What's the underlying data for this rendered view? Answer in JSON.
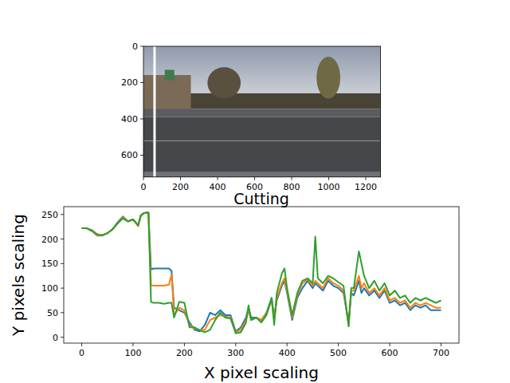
{
  "chart_data": [
    {
      "type": "image",
      "xlim": [
        0,
        1280
      ],
      "ylim": [
        720,
        0
      ],
      "xticks": [
        0,
        200,
        400,
        600,
        800,
        1000,
        1200
      ],
      "yticks": [
        0,
        200,
        400,
        600
      ],
      "cut_line": 60
    },
    {
      "type": "line",
      "title": "Cutting",
      "x_label": "X pixel scaling",
      "y_label": "Y pixels scaling",
      "xlim": [
        -35,
        735
      ],
      "ylim": [
        -12,
        266
      ],
      "xticks": [
        0,
        100,
        200,
        300,
        400,
        500,
        600,
        700
      ],
      "yticks": [
        0,
        50,
        100,
        150,
        200,
        250
      ],
      "x": [
        0,
        10,
        20,
        30,
        40,
        50,
        60,
        70,
        80,
        90,
        100,
        110,
        115,
        120,
        125,
        130,
        135,
        140,
        150,
        160,
        170,
        175,
        180,
        190,
        200,
        210,
        220,
        230,
        240,
        250,
        260,
        270,
        280,
        290,
        300,
        310,
        320,
        325,
        330,
        340,
        350,
        360,
        370,
        375,
        380,
        390,
        395,
        400,
        410,
        420,
        430,
        440,
        450,
        455,
        460,
        470,
        480,
        490,
        500,
        510,
        520,
        525,
        530,
        540,
        545,
        550,
        560,
        570,
        580,
        590,
        600,
        610,
        620,
        630,
        640,
        650,
        660,
        670,
        680,
        690,
        700
      ],
      "series": [
        {
          "color": "#1f77b4",
          "values": [
            222,
            222,
            216,
            207,
            207,
            212,
            220,
            234,
            246,
            236,
            240,
            228,
            248,
            252,
            254,
            254,
            138,
            140,
            140,
            140,
            140,
            135,
            60,
            55,
            50,
            30,
            15,
            12,
            25,
            50,
            45,
            55,
            45,
            45,
            12,
            20,
            40,
            60,
            40,
            40,
            35,
            50,
            80,
            40,
            75,
            105,
            115,
            90,
            35,
            80,
            100,
            115,
            100,
            110,
            105,
            95,
            115,
            105,
            100,
            90,
            30,
            90,
            85,
            115,
            90,
            100,
            85,
            95,
            80,
            95,
            70,
            75,
            65,
            70,
            55,
            65,
            60,
            65,
            55,
            55,
            55
          ]
        },
        {
          "color": "#ff7f0e",
          "values": [
            222,
            222,
            217,
            208,
            208,
            212,
            219,
            232,
            244,
            236,
            240,
            226,
            246,
            252,
            254,
            254,
            106,
            105,
            105,
            105,
            107,
            128,
            45,
            60,
            55,
            25,
            18,
            15,
            15,
            35,
            40,
            45,
            42,
            40,
            10,
            15,
            35,
            55,
            35,
            40,
            35,
            48,
            75,
            35,
            80,
            110,
            120,
            95,
            40,
            85,
            110,
            118,
            105,
            115,
            110,
            100,
            120,
            110,
            105,
            95,
            25,
            95,
            95,
            125,
            100,
            110,
            90,
            100,
            85,
            100,
            75,
            80,
            70,
            75,
            60,
            70,
            65,
            70,
            65,
            60,
            60
          ]
        },
        {
          "color": "#2ca02c",
          "values": [
            222,
            222,
            218,
            210,
            208,
            212,
            220,
            232,
            242,
            236,
            240,
            228,
            248,
            252,
            254,
            254,
            72,
            70,
            70,
            68,
            70,
            70,
            40,
            72,
            70,
            20,
            20,
            14,
            10,
            15,
            35,
            50,
            40,
            38,
            8,
            10,
            30,
            65,
            35,
            40,
            30,
            45,
            80,
            25,
            90,
            130,
            140,
            100,
            45,
            90,
            115,
            120,
            110,
            205,
            120,
            110,
            125,
            120,
            112,
            105,
            22,
            100,
            100,
            175,
            150,
            125,
            100,
            115,
            95,
            110,
            85,
            95,
            80,
            85,
            70,
            80,
            75,
            80,
            75,
            70,
            75
          ]
        }
      ]
    }
  ]
}
